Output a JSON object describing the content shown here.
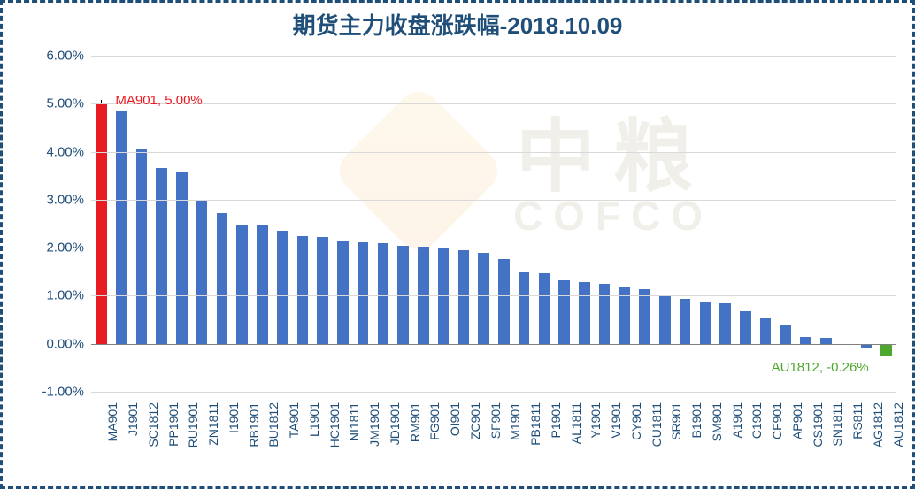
{
  "chart": {
    "type": "bar",
    "title": "期货主力收盘涨跌幅-2018.10.09",
    "title_fontsize": 26,
    "title_color": "#1f4e79",
    "border_style": "dashed",
    "border_color": "#1f4e79",
    "background_color": "#ffffff",
    "grid_color": "#d9d9d9",
    "axis_color": "#808080",
    "label_color": "#1f4e79",
    "label_fontsize": 15,
    "xlabel_fontsize": 14,
    "ylim": [
      -1.0,
      6.0
    ],
    "ytick_step": 1.0,
    "y_format": "#.00%",
    "bar_width_ratio": 0.55,
    "default_bar_color": "#4472c4",
    "highlight_first_color": "#e81b23",
    "highlight_last_color": "#4ea72e",
    "categories": [
      "MA901",
      "J1901",
      "SC1812",
      "PP1901",
      "RU1901",
      "ZN1811",
      "I1901",
      "RB1901",
      "BU1812",
      "TA901",
      "L1901",
      "HC1901",
      "NI1811",
      "JM1901",
      "JD1901",
      "RM901",
      "FG901",
      "OI901",
      "ZC901",
      "SF901",
      "M1901",
      "PB1811",
      "P1901",
      "AL1811",
      "Y1901",
      "V1901",
      "CY901",
      "CU1811",
      "SR901",
      "B1901",
      "SM901",
      "A1901",
      "C1901",
      "CF901",
      "AP901",
      "CS1901",
      "SN1811",
      "RS811",
      "AG1812",
      "AU1812"
    ],
    "values": [
      5.0,
      4.84,
      4.05,
      3.66,
      3.57,
      2.98,
      2.72,
      2.48,
      2.46,
      2.36,
      2.24,
      2.22,
      2.14,
      2.12,
      2.1,
      2.04,
      2.02,
      1.98,
      1.94,
      1.9,
      1.76,
      1.48,
      1.46,
      1.32,
      1.28,
      1.24,
      1.2,
      1.14,
      1.0,
      0.94,
      0.86,
      0.84,
      0.68,
      0.52,
      0.38,
      0.14,
      0.12,
      0.0,
      -0.1,
      -0.26
    ],
    "annotations": {
      "first": {
        "text": "MA901, 5.00%",
        "color": "#e81b23"
      },
      "last": {
        "text": "AU1812, -0.26%",
        "color": "#4ea72e"
      }
    },
    "watermark": {
      "cn": "中粮",
      "en": "COFCO"
    }
  }
}
